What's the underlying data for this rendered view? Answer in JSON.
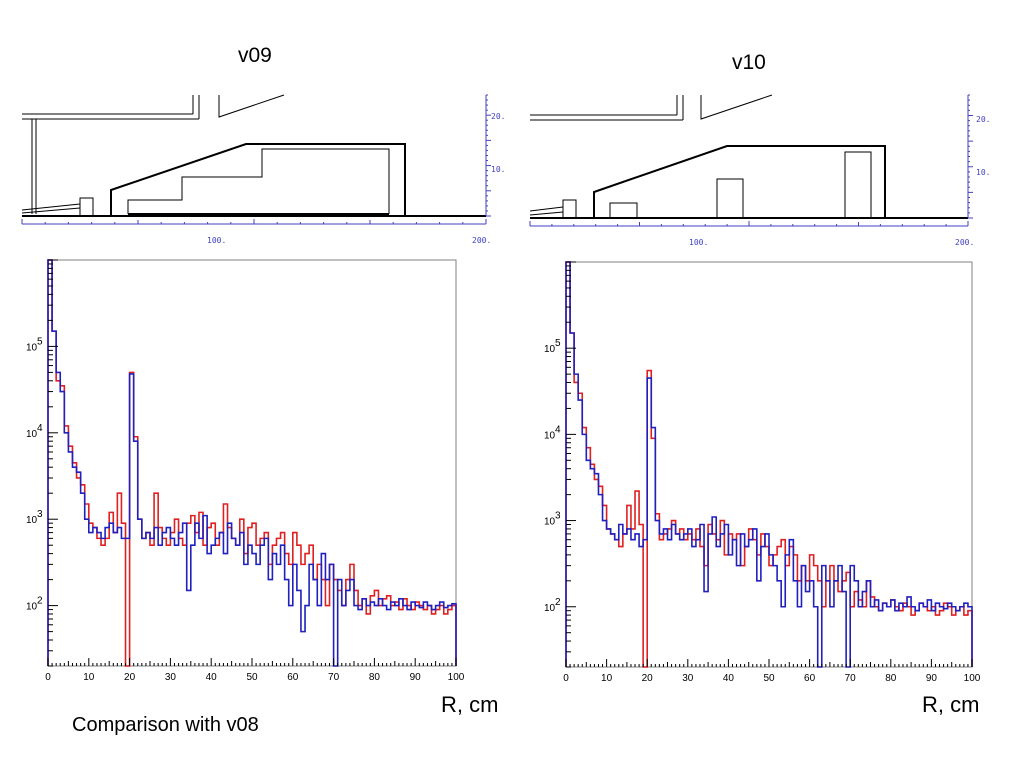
{
  "titles": {
    "left": "v09",
    "right": "v10"
  },
  "xlabel": "R, cm",
  "caption": "Comparison with v08",
  "colors": {
    "series_red": "#e02020",
    "series_blue": "#2020c0",
    "ruler": "#4040c0"
  },
  "geometry_views": {
    "ruler_x_ticks": [
      "100.",
      "200."
    ],
    "ruler_y_ticks": [
      "10.",
      "20."
    ]
  },
  "chart_data": [
    {
      "type": "line",
      "panel": "v09",
      "title": "",
      "xlabel": "R, cm",
      "ylabel": "",
      "xlim": [
        0,
        100
      ],
      "ylim": [
        20,
        1000000
      ],
      "yscale": "log",
      "x_ticks": [
        "0",
        "10",
        "20",
        "30",
        "40",
        "50",
        "60",
        "70",
        "80",
        "90",
        "100"
      ],
      "y_ticks": [
        {
          "label": "10",
          "exp": "2",
          "value": 100
        },
        {
          "label": "10",
          "exp": "3",
          "value": 1000
        },
        {
          "label": "10",
          "exp": "4",
          "value": 10000
        },
        {
          "label": "10",
          "exp": "5",
          "value": 100000
        }
      ],
      "grid": false,
      "bin_edges_start": 0,
      "bin_width": 1,
      "series": [
        {
          "color": "#e02020",
          "values": [
            1000000,
            150000,
            40000,
            35000,
            12000,
            7000,
            4500,
            3000,
            2500,
            1500,
            900,
            800,
            600,
            500,
            600,
            1200,
            700,
            2000,
            900,
            20,
            50000,
            9000,
            1000,
            600,
            700,
            500,
            2000,
            800,
            600,
            500,
            700,
            1000,
            600,
            500,
            900,
            1100,
            700,
            1200,
            500,
            800,
            900,
            500,
            700,
            1500,
            800,
            600,
            500,
            1000,
            400,
            800,
            900,
            500,
            600,
            700,
            300,
            500,
            600,
            700,
            400,
            300,
            700,
            500,
            300,
            400,
            500,
            200,
            300,
            200,
            100,
            300,
            200,
            150,
            100,
            200,
            300,
            150,
            100,
            120,
            80,
            130,
            150,
            100,
            120,
            130,
            100,
            110,
            90,
            120,
            100,
            90,
            110,
            100,
            90,
            100,
            80,
            90,
            100,
            80,
            90,
            100
          ]
        },
        {
          "color": "#2020c0",
          "values": [
            1000000,
            150000,
            50000,
            30000,
            10000,
            6000,
            4000,
            3500,
            2000,
            1000,
            700,
            800,
            700,
            600,
            800,
            900,
            700,
            800,
            600,
            600,
            48000,
            8000,
            1000,
            600,
            700,
            600,
            800,
            500,
            700,
            800,
            600,
            500,
            700,
            900,
            150,
            500,
            900,
            600,
            1100,
            400,
            500,
            600,
            700,
            400,
            900,
            600,
            500,
            700,
            300,
            500,
            400,
            300,
            500,
            600,
            200,
            400,
            300,
            500,
            200,
            100,
            300,
            150,
            50,
            100,
            300,
            200,
            100,
            400,
            200,
            300,
            20,
            200,
            100,
            150,
            200,
            100,
            90,
            120,
            100,
            110,
            100,
            120,
            100,
            90,
            110,
            100,
            120,
            100,
            90,
            110,
            100,
            95,
            110,
            100,
            90,
            100,
            110,
            95,
            100,
            105
          ]
        }
      ]
    },
    {
      "type": "line",
      "panel": "v10",
      "title": "",
      "xlabel": "R, cm",
      "ylabel": "",
      "xlim": [
        0,
        100
      ],
      "ylim": [
        20,
        1000000
      ],
      "yscale": "log",
      "x_ticks": [
        "0",
        "10",
        "20",
        "30",
        "40",
        "50",
        "60",
        "70",
        "80",
        "90",
        "100"
      ],
      "y_ticks": [
        {
          "label": "10",
          "exp": "2",
          "value": 100
        },
        {
          "label": "10",
          "exp": "3",
          "value": 1000
        },
        {
          "label": "10",
          "exp": "4",
          "value": 10000
        },
        {
          "label": "10",
          "exp": "5",
          "value": 100000
        }
      ],
      "grid": false,
      "bin_edges_start": 0,
      "bin_width": 1,
      "series": [
        {
          "color": "#e02020",
          "values": [
            1000000,
            150000,
            40000,
            30000,
            12000,
            7000,
            4500,
            3000,
            2500,
            1500,
            800,
            700,
            600,
            500,
            700,
            1500,
            800,
            2200,
            900,
            20,
            55000,
            9000,
            1200,
            600,
            700,
            800,
            1000,
            700,
            800,
            600,
            700,
            600,
            800,
            500,
            300,
            900,
            700,
            600,
            1000,
            400,
            700,
            600,
            700,
            300,
            500,
            800,
            600,
            400,
            700,
            500,
            300,
            400,
            500,
            600,
            300,
            500,
            400,
            200,
            300,
            200,
            400,
            300,
            200,
            100,
            200,
            300,
            200,
            150,
            200,
            250,
            100,
            150,
            120,
            100,
            200,
            130,
            100,
            90,
            110,
            100,
            120,
            100,
            90,
            110,
            100,
            80,
            90,
            110,
            100,
            90,
            100,
            80,
            90,
            110,
            100,
            80,
            90,
            100,
            80,
            90
          ]
        },
        {
          "color": "#2020c0",
          "values": [
            1000000,
            150000,
            50000,
            25000,
            10000,
            5000,
            4000,
            3500,
            2000,
            1000,
            800,
            700,
            600,
            900,
            700,
            800,
            600,
            700,
            500,
            600,
            45000,
            12000,
            1000,
            700,
            800,
            600,
            900,
            700,
            600,
            700,
            800,
            500,
            600,
            900,
            150,
            700,
            1100,
            500,
            700,
            900,
            400,
            600,
            300,
            700,
            500,
            600,
            800,
            200,
            500,
            700,
            400,
            300,
            200,
            100,
            400,
            600,
            200,
            100,
            300,
            150,
            200,
            100,
            20,
            300,
            200,
            100,
            200,
            300,
            150,
            20,
            300,
            200,
            100,
            150,
            200,
            100,
            120,
            90,
            110,
            100,
            120,
            90,
            110,
            100,
            130,
            100,
            90,
            110,
            100,
            120,
            90,
            110,
            100,
            95,
            110,
            100,
            90,
            100,
            110,
            100
          ]
        }
      ]
    }
  ]
}
